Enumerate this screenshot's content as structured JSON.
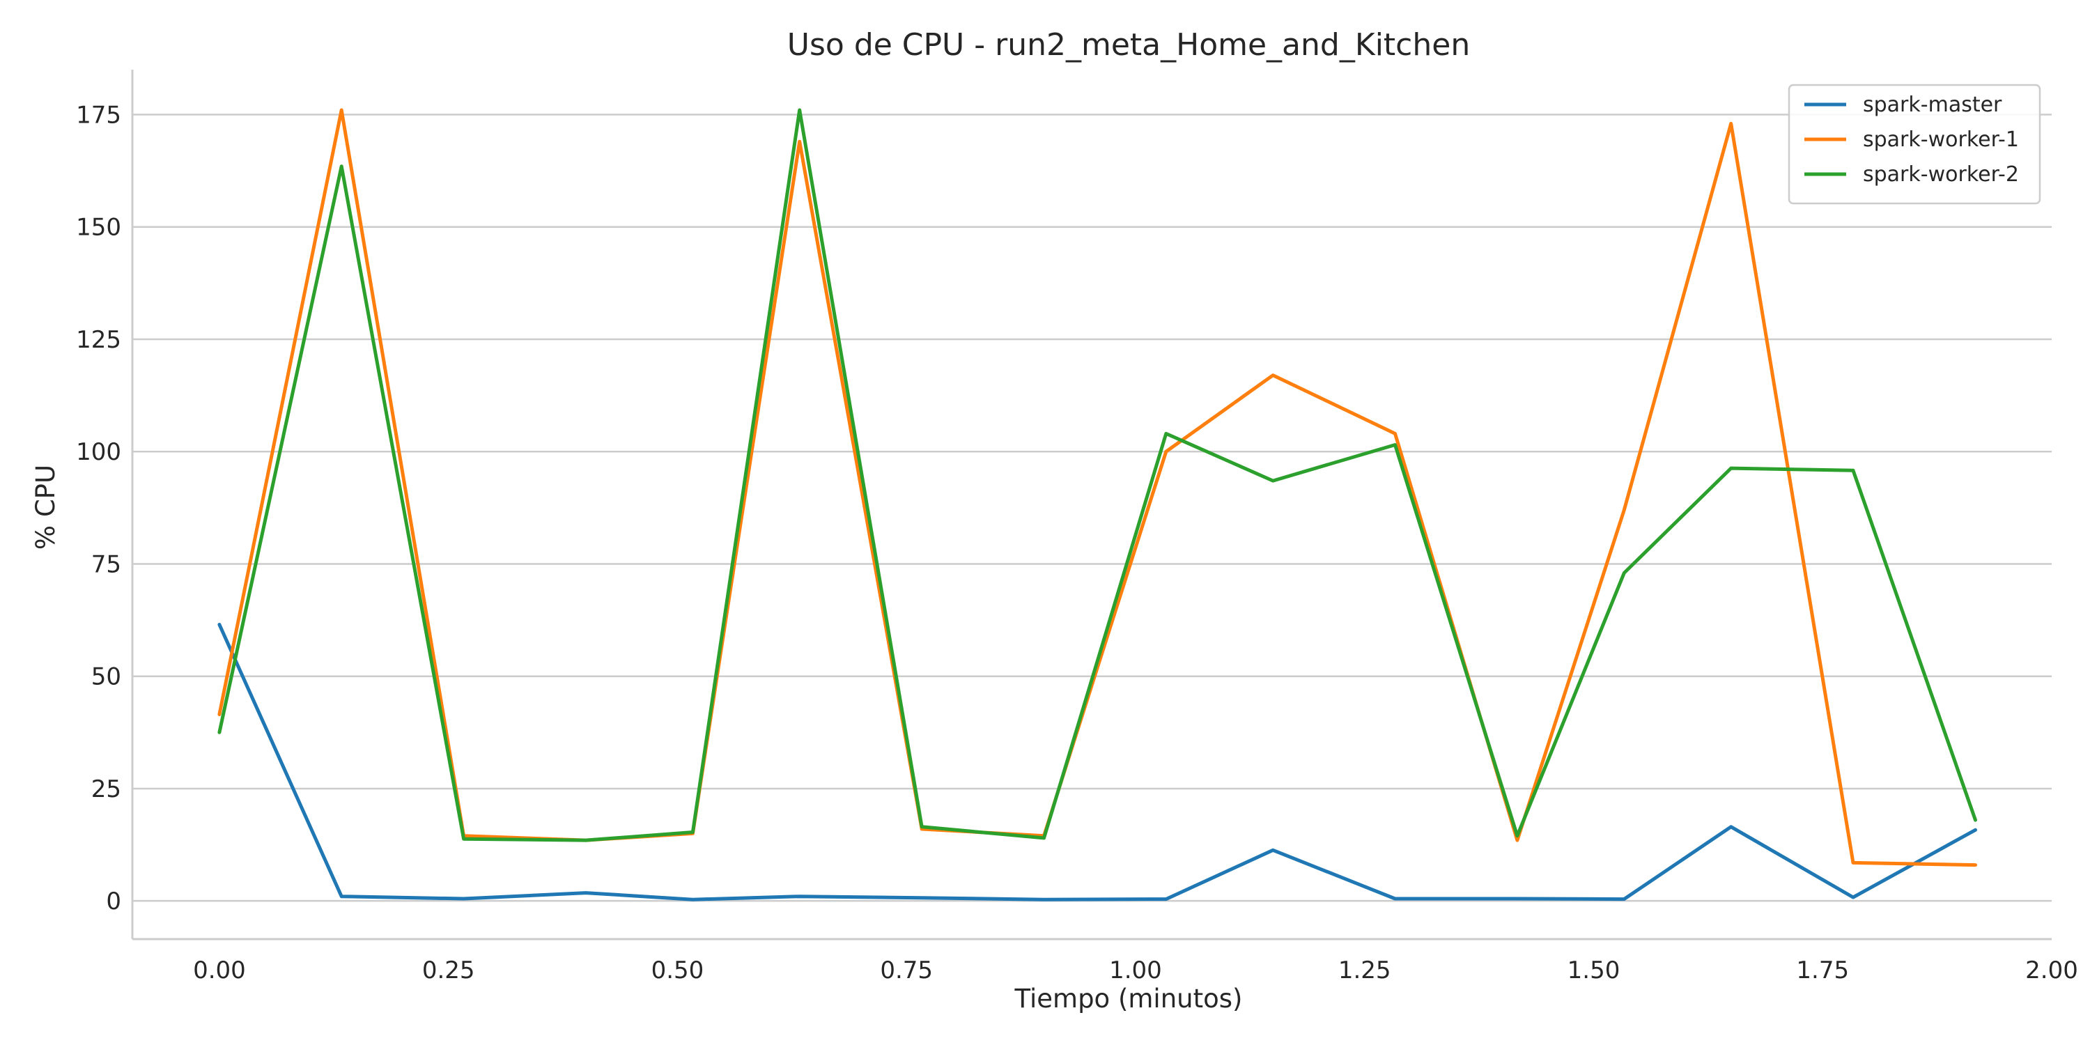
{
  "chart_data": {
    "type": "line",
    "title": "Uso de CPU - run2_meta_Home_and_Kitchen",
    "xlabel": "Tiempo (minutos)",
    "ylabel": "% CPU",
    "xlim": [
      -0.095,
      2.0
    ],
    "ylim": [
      -8.5,
      185
    ],
    "xticks": [
      0.0,
      0.25,
      0.5,
      0.75,
      1.0,
      1.25,
      1.5,
      1.75,
      2.0
    ],
    "xtick_labels": [
      "0.00",
      "0.25",
      "0.50",
      "0.75",
      "1.00",
      "1.25",
      "1.50",
      "1.75",
      "2.00"
    ],
    "yticks": [
      0,
      25,
      50,
      75,
      100,
      125,
      150,
      175
    ],
    "ytick_labels": [
      "0",
      "25",
      "50",
      "75",
      "100",
      "125",
      "150",
      "175"
    ],
    "grid": "horizontal",
    "legend_position": "top-right",
    "x": [
      0.0,
      0.1333,
      0.2667,
      0.4,
      0.5167,
      0.6333,
      0.7667,
      0.9,
      1.0333,
      1.15,
      1.2833,
      1.4167,
      1.5333,
      1.65,
      1.7833,
      1.9167
    ],
    "series": [
      {
        "name": "spark-master",
        "color": "#1f77b4",
        "values": [
          61.5,
          1.0,
          0.5,
          1.8,
          0.3,
          1.0,
          0.7,
          0.3,
          0.4,
          11.3,
          0.5,
          0.5,
          0.4,
          16.5,
          0.8,
          15.8
        ]
      },
      {
        "name": "spark-worker-1",
        "color": "#ff7f0e",
        "values": [
          41.5,
          176.0,
          14.5,
          13.5,
          15.0,
          169.0,
          16.0,
          14.5,
          100.0,
          117.0,
          104.0,
          13.5,
          87.0,
          173.0,
          8.5,
          8.0
        ]
      },
      {
        "name": "spark-worker-2",
        "color": "#2ca02c",
        "values": [
          37.5,
          163.5,
          13.8,
          13.5,
          15.3,
          176.0,
          16.5,
          14.0,
          104.0,
          93.5,
          101.5,
          14.5,
          73.0,
          96.3,
          95.8,
          18.0
        ]
      }
    ]
  }
}
